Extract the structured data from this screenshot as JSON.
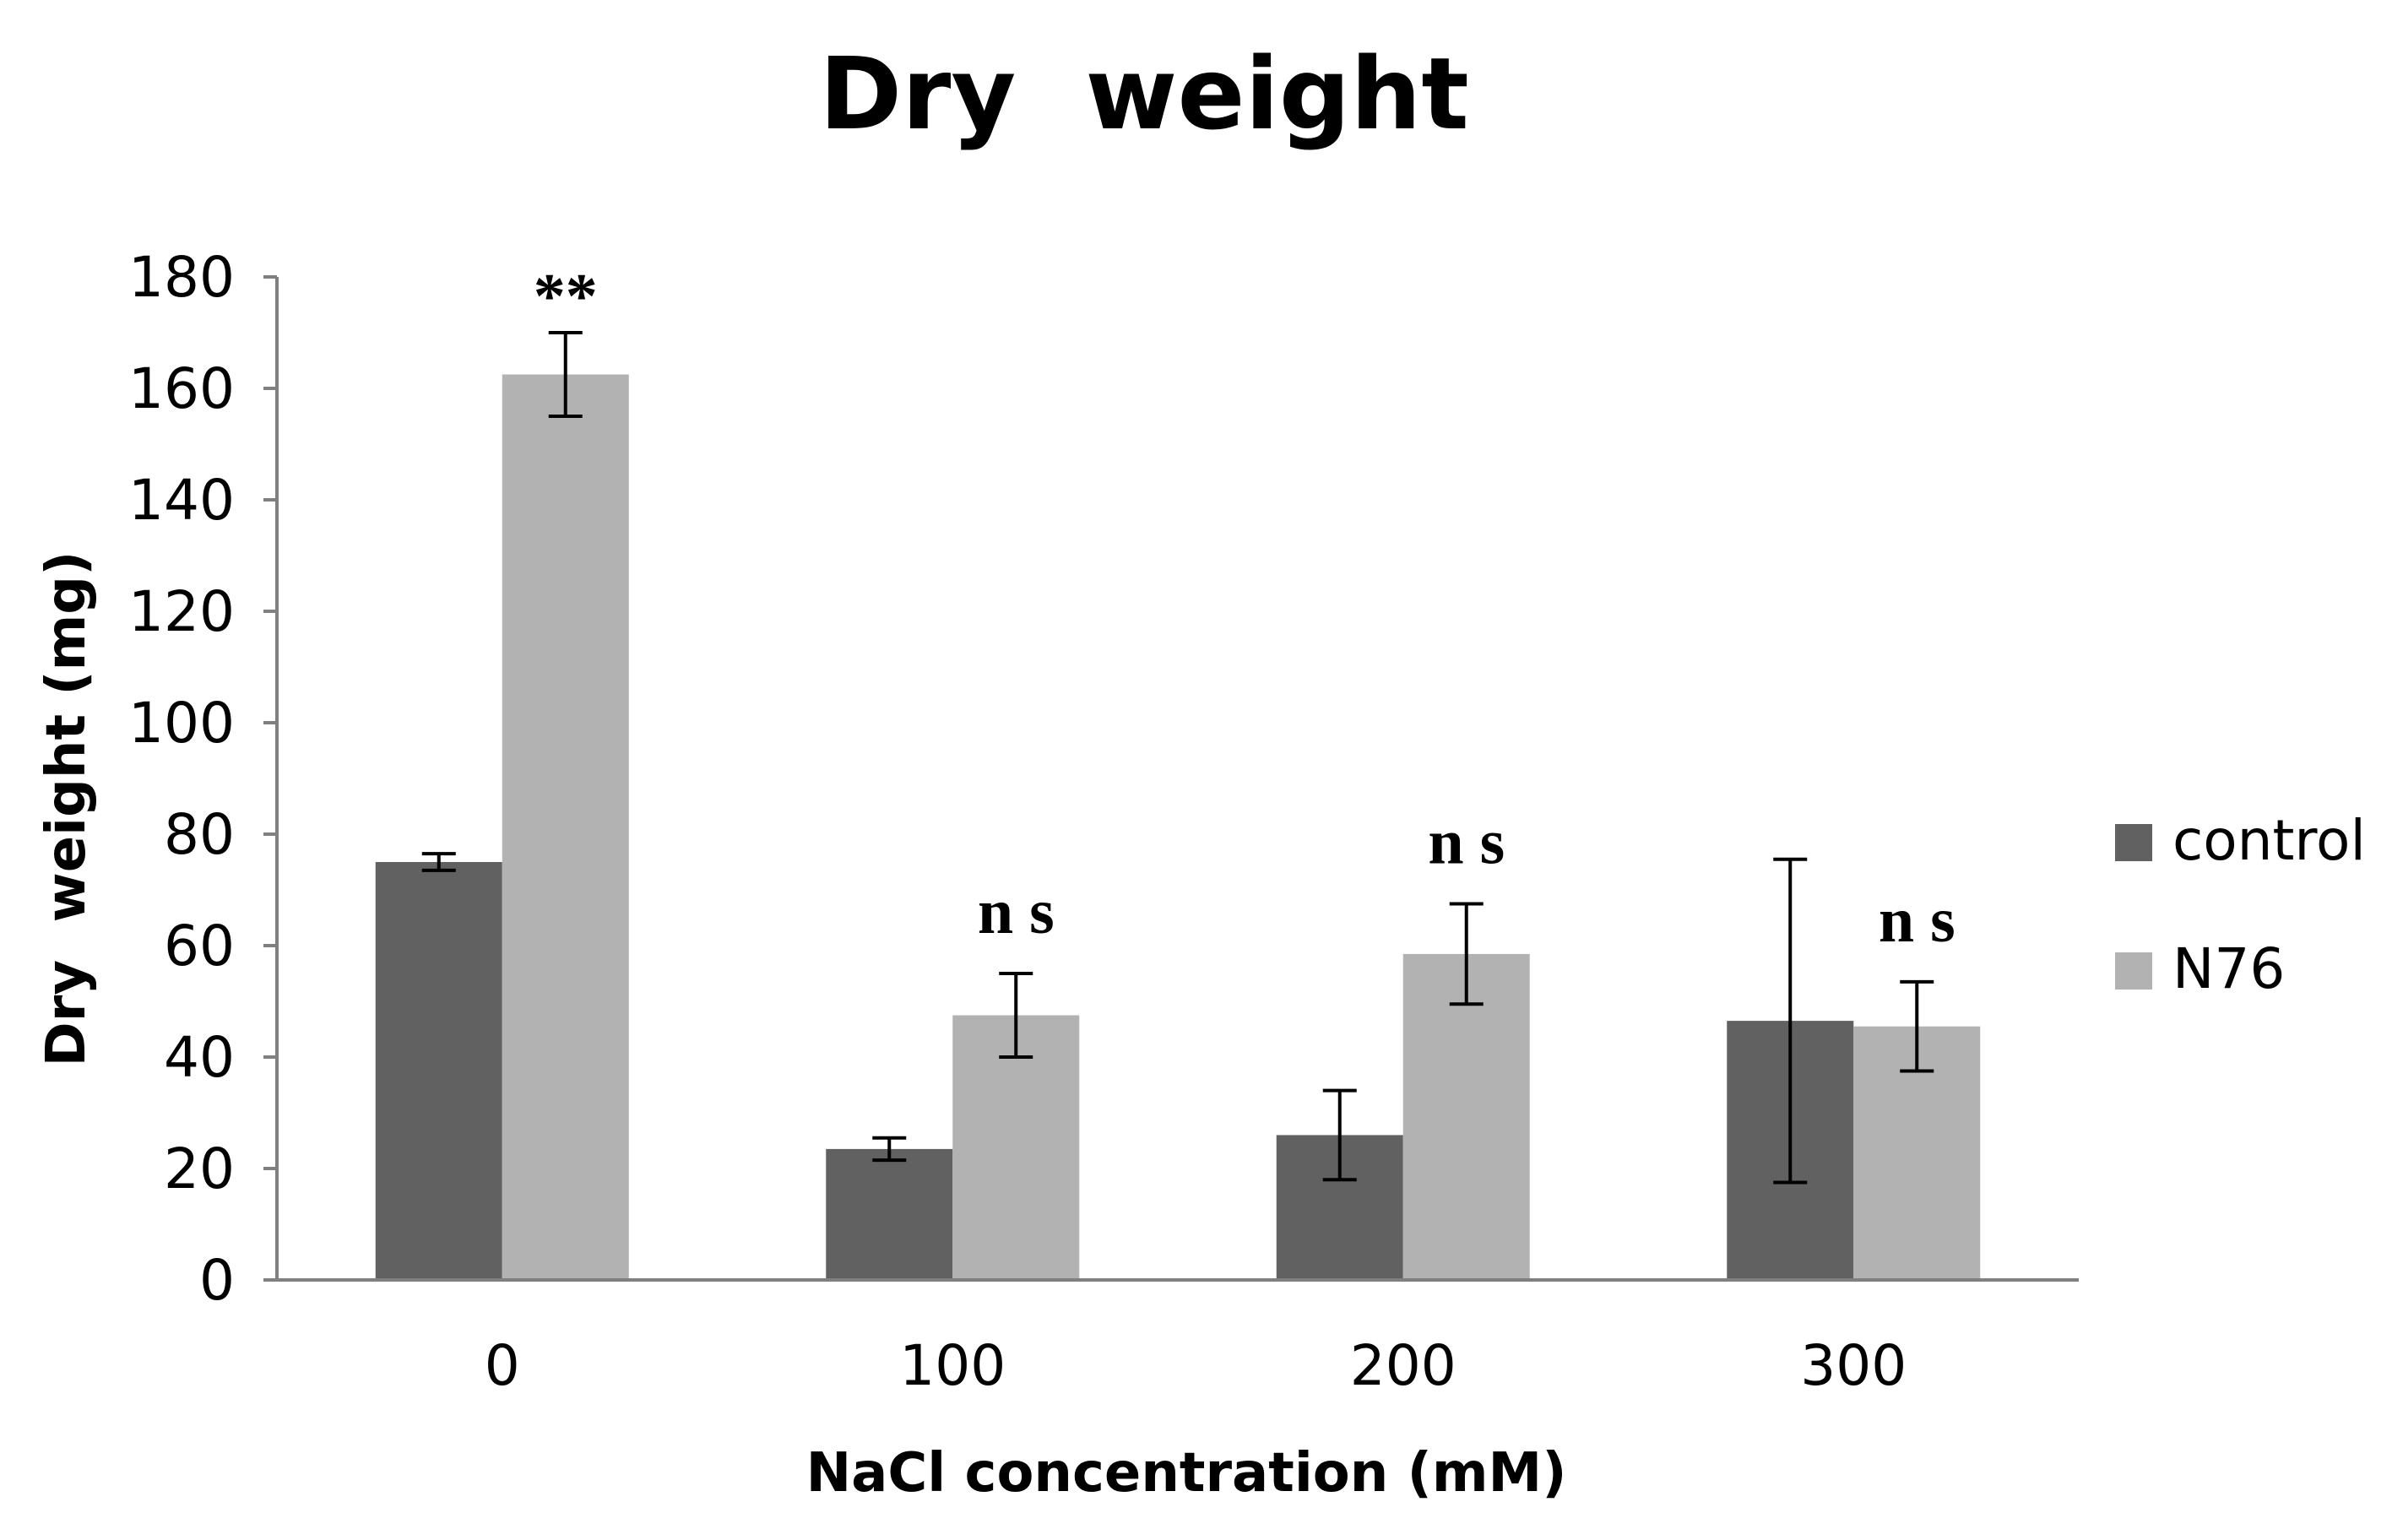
{
  "chart_data": {
    "type": "bar",
    "title": "Dry  weight",
    "xlabel": "NaCl concentration (mM)",
    "ylabel": "Dry  weight (mg)",
    "categories": [
      "0",
      "100",
      "200",
      "300"
    ],
    "ylim": [
      0,
      180
    ],
    "yticks": [
      "0",
      "20",
      "40",
      "60",
      "80",
      "100",
      "120",
      "140",
      "160",
      "180"
    ],
    "grid": false,
    "legend_position": "right",
    "series": [
      {
        "name": "control",
        "color": "#616161",
        "values": [
          75,
          23.5,
          26,
          46.5
        ],
        "errors": [
          1.5,
          2,
          8,
          29
        ]
      },
      {
        "name": "N76",
        "color": "#b2b2b2",
        "values": [
          162.5,
          47.5,
          58.5,
          45.5
        ],
        "errors": [
          7.5,
          7.5,
          9,
          8
        ]
      }
    ],
    "annotations": [
      "**",
      "n s",
      "n s",
      "n s"
    ]
  }
}
